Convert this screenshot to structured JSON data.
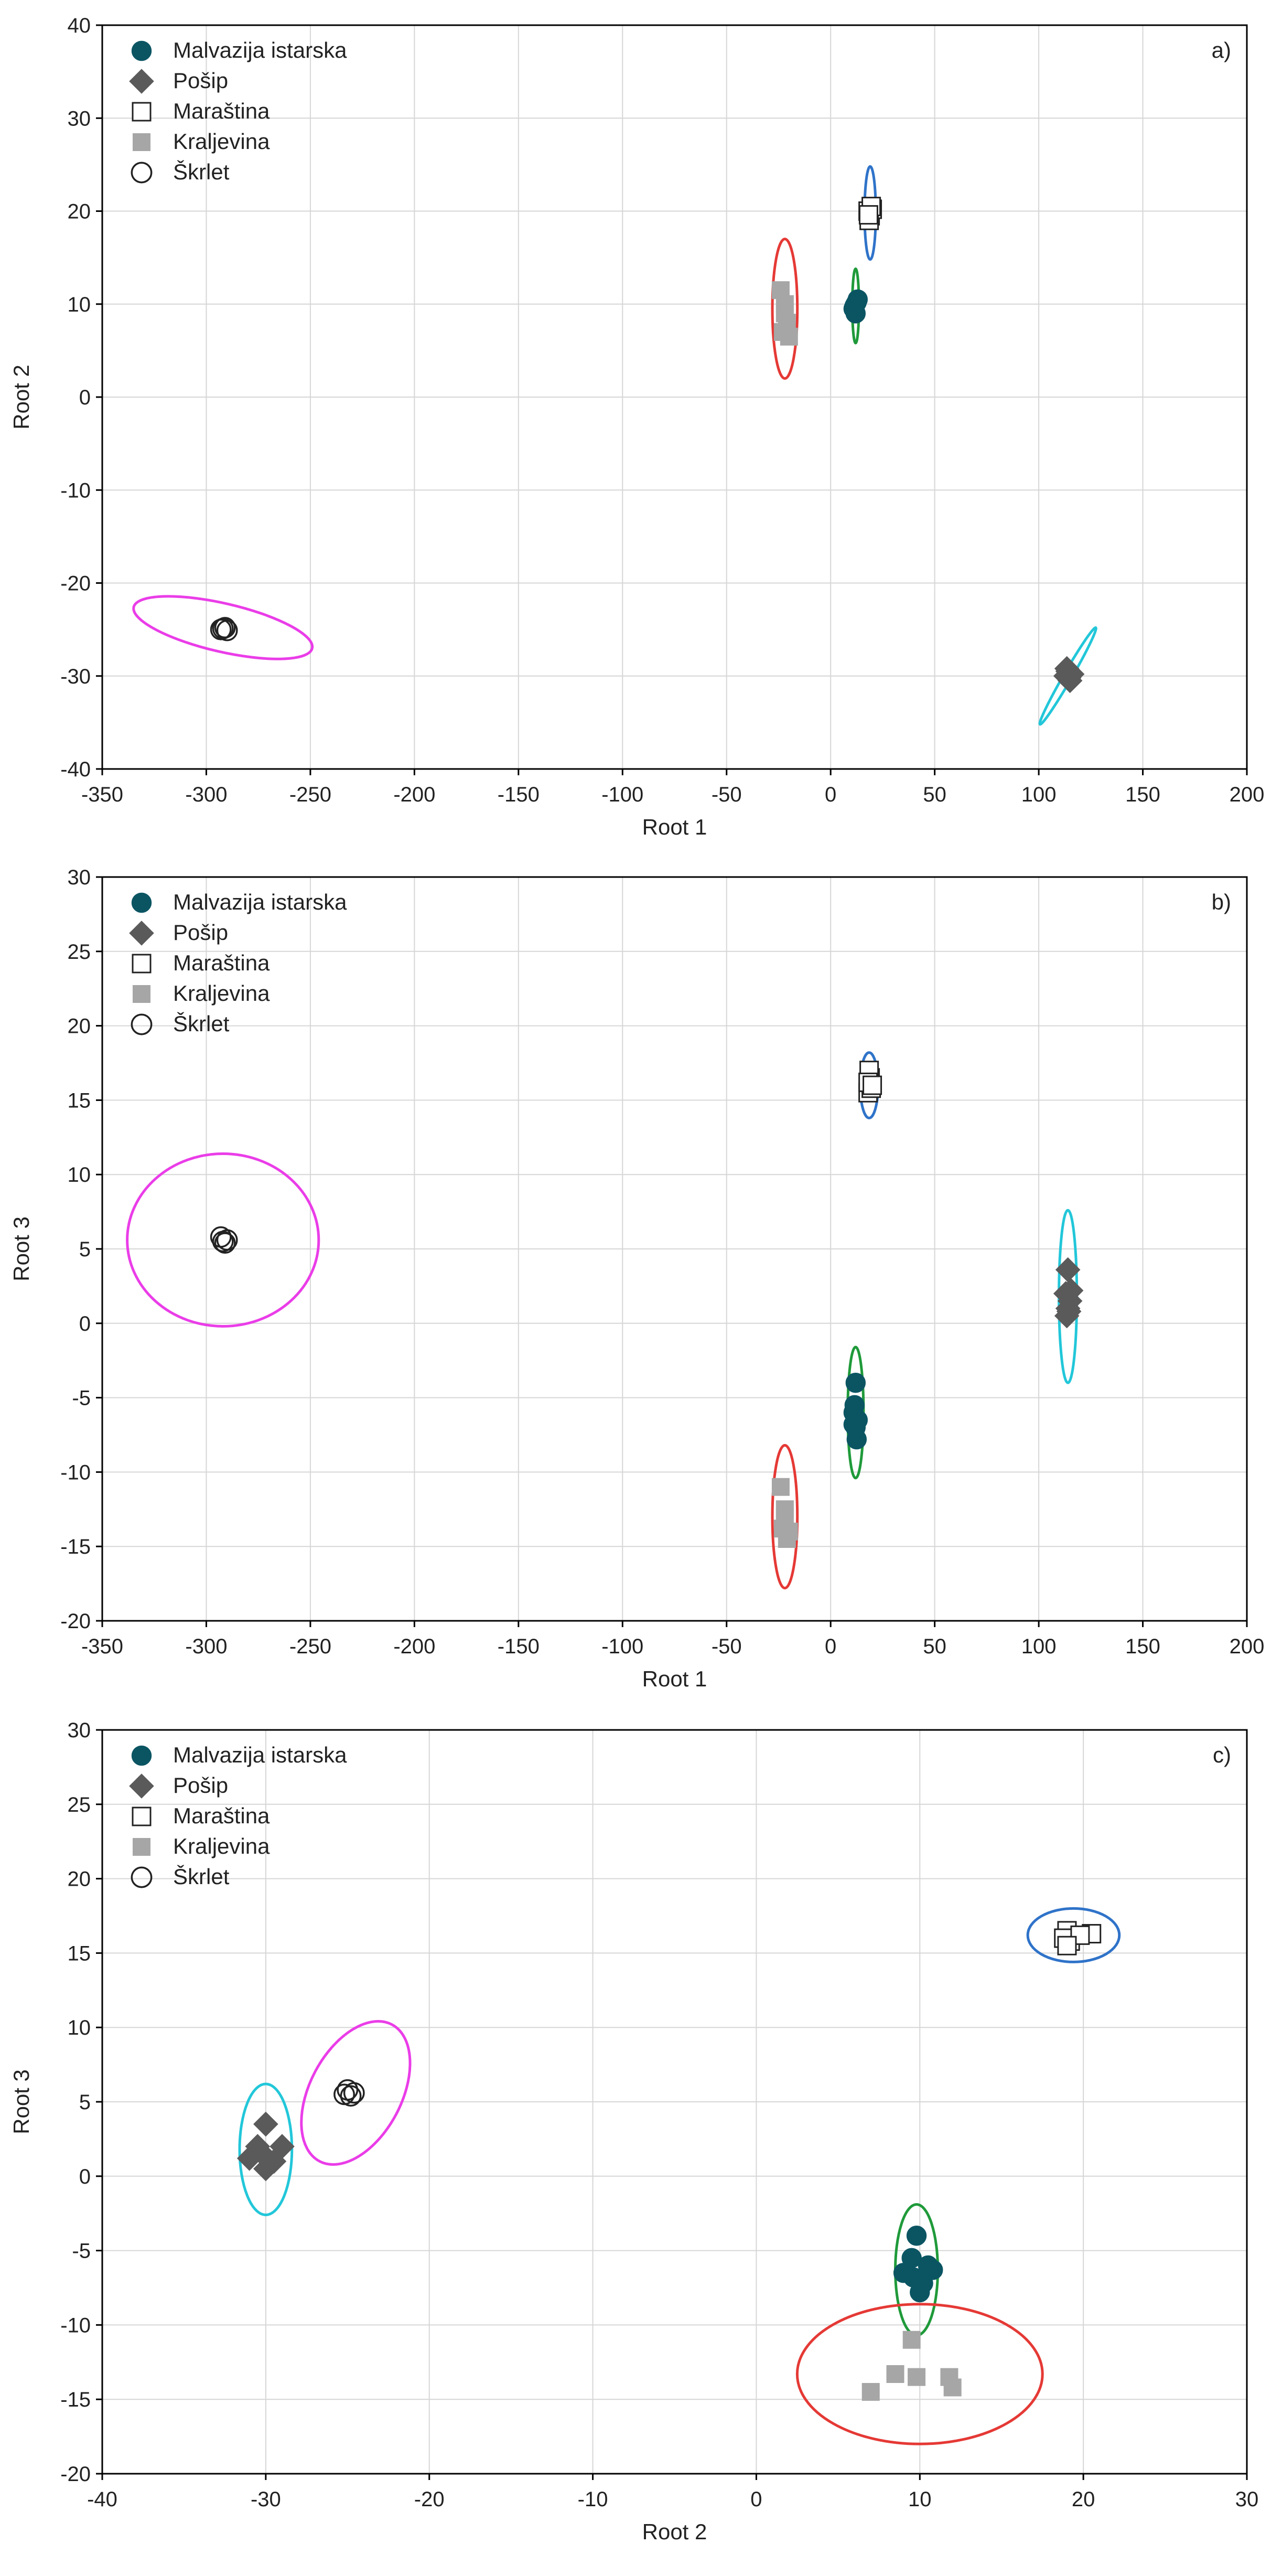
{
  "colors": {
    "malvazija": "#0b5563",
    "posip": "#5a5a5a",
    "marastina": "#222222",
    "kraljevina": "#a6a6a6",
    "skrlet": "#222222",
    "ellipse_malvazija": "#1f9a3a",
    "ellipse_posip": "#22c7d9",
    "ellipse_marastina": "#2f73c9",
    "ellipse_kraljevina": "#e53935",
    "ellipse_skrlet": "#ea3de8",
    "grid": "#d6d6d6"
  },
  "chart_data": [
    {
      "type": "scatter",
      "panel_label": "a)",
      "xlabel": "Root 1",
      "ylabel": "Root 2",
      "xlim": [
        -350,
        200
      ],
      "ylim": [
        -40,
        40
      ],
      "xticks": [
        -350,
        -300,
        -250,
        -200,
        -150,
        -100,
        -50,
        0,
        50,
        100,
        150,
        200
      ],
      "yticks": [
        -40,
        -30,
        -20,
        -10,
        0,
        10,
        20,
        30,
        40
      ],
      "grid": true,
      "legend_position": "top-left",
      "series": [
        {
          "name": "Malvazija istarska",
          "marker": "circle-filled",
          "color_key": "malvazija",
          "points": [
            [
              11,
              9.5
            ],
            [
              12,
              10
            ],
            [
              13,
              10.5
            ],
            [
              12,
              9
            ],
            [
              11.5,
              9.8
            ],
            [
              12.5,
              10.2
            ]
          ],
          "ellipse": {
            "cx": 12,
            "cy": 9.8,
            "rx": 4,
            "ry": 1.6,
            "rot": 90,
            "color_key": "ellipse_malvazija"
          }
        },
        {
          "name": "Pošip",
          "marker": "diamond",
          "color_key": "posip",
          "points": [
            [
              113,
              -30
            ],
            [
              114,
              -29.5
            ],
            [
              115,
              -30.5
            ],
            [
              116,
              -29.8
            ],
            [
              114.5,
              -30.2
            ],
            [
              113.5,
              -29.2
            ]
          ],
          "ellipse": {
            "cx": 114,
            "cy": -30,
            "rx": 6,
            "ry": 2,
            "rot": 60,
            "color_key": "ellipse_posip"
          }
        },
        {
          "name": "Maraština",
          "marker": "square-open",
          "color_key": "marastina",
          "points": [
            [
              18,
              20
            ],
            [
              19,
              19.5
            ],
            [
              20,
              20.2
            ],
            [
              18.5,
              19
            ],
            [
              19.5,
              20.5
            ],
            [
              18.2,
              19.6
            ]
          ],
          "ellipse": {
            "cx": 19,
            "cy": 19.8,
            "rx": 5,
            "ry": 2.7,
            "rot": 90,
            "color_key": "ellipse_marastina"
          }
        },
        {
          "name": "Kraljevina",
          "marker": "square-filled",
          "color_key": "kraljevina",
          "points": [
            [
              -24,
              11.5
            ],
            [
              -22,
              10
            ],
            [
              -21,
              8
            ],
            [
              -23,
              7
            ],
            [
              -22,
              9
            ],
            [
              -20,
              6.5
            ]
          ],
          "ellipse": {
            "cx": -22,
            "cy": 9.5,
            "rx": 7.5,
            "ry": 6,
            "rot": 90,
            "color_key": "ellipse_kraljevina"
          }
        },
        {
          "name": "Škrlet",
          "marker": "circle-open",
          "color_key": "skrlet",
          "points": [
            [
              -293,
              -25
            ],
            [
              -291,
              -24.8
            ],
            [
              -290,
              -25.1
            ],
            [
              -292,
              -24.9
            ]
          ],
          "ellipse": {
            "cx": -292,
            "cy": -24.8,
            "rx": 44,
            "ry": 2.6,
            "rot": -13,
            "color_key": "ellipse_skrlet"
          }
        }
      ]
    },
    {
      "type": "scatter",
      "panel_label": "b)",
      "xlabel": "Root 1",
      "ylabel": "Root 3",
      "xlim": [
        -350,
        200
      ],
      "ylim": [
        -20,
        30
      ],
      "xticks": [
        -350,
        -300,
        -250,
        -200,
        -150,
        -100,
        -50,
        0,
        50,
        100,
        150,
        200
      ],
      "yticks": [
        -20,
        -15,
        -10,
        -5,
        0,
        5,
        10,
        15,
        20,
        25,
        30
      ],
      "grid": true,
      "legend_position": "top-left",
      "series": [
        {
          "name": "Malvazija istarska",
          "marker": "circle-filled",
          "color_key": "malvazija",
          "points": [
            [
              12,
              -4
            ],
            [
              11,
              -6
            ],
            [
              12,
              -7
            ],
            [
              13,
              -6.5
            ],
            [
              11.5,
              -5.5
            ],
            [
              12.5,
              -7.8
            ],
            [
              11,
              -6.8
            ]
          ],
          "ellipse": {
            "cx": 12,
            "cy": -6,
            "rx": 4.4,
            "ry": 3.8,
            "rot": 90,
            "color_key": "ellipse_malvazija"
          }
        },
        {
          "name": "Pošip",
          "marker": "diamond",
          "color_key": "posip",
          "points": [
            [
              114,
              3.6
            ],
            [
              113,
              2
            ],
            [
              115,
              1.5
            ],
            [
              114,
              1
            ],
            [
              113.5,
              0.5
            ],
            [
              115.5,
              2.2
            ],
            [
              114.5,
              0.8
            ]
          ],
          "ellipse": {
            "cx": 114,
            "cy": 1.8,
            "rx": 4.3,
            "ry": 5.8,
            "rot": 0,
            "color_key": "ellipse_posip"
          }
        },
        {
          "name": "Maraština",
          "marker": "square-open",
          "color_key": "marastina",
          "points": [
            [
              18,
              15.5
            ],
            [
              19,
              16.5
            ],
            [
              18.5,
              17
            ],
            [
              19.5,
              15.8
            ],
            [
              18,
              16.2
            ],
            [
              20,
              16
            ]
          ],
          "ellipse": {
            "cx": 18.5,
            "cy": 16,
            "rx": 4.3,
            "ry": 2.2,
            "rot": 0,
            "color_key": "ellipse_marastina"
          }
        },
        {
          "name": "Kraljevina",
          "marker": "square-filled",
          "color_key": "kraljevina",
          "points": [
            [
              -24,
              -11
            ],
            [
              -22,
              -13
            ],
            [
              -21,
              -14.5
            ],
            [
              -23,
              -13.8
            ],
            [
              -22,
              -12.5
            ],
            [
              -20,
              -14
            ]
          ],
          "ellipse": {
            "cx": -22,
            "cy": -13,
            "rx": 6,
            "ry": 4.8,
            "rot": 0,
            "color_key": "ellipse_kraljevina"
          }
        },
        {
          "name": "Škrlet",
          "marker": "circle-open",
          "color_key": "skrlet",
          "points": [
            [
              -293,
              5.8
            ],
            [
              -291,
              5.4
            ],
            [
              -290,
              5.6
            ],
            [
              -292,
              5.5
            ]
          ],
          "ellipse": {
            "cx": -292,
            "cy": 5.6,
            "rx": 46,
            "ry": 5.8,
            "rot": 0,
            "color_key": "ellipse_skrlet"
          }
        }
      ]
    },
    {
      "type": "scatter",
      "panel_label": "c)",
      "xlabel": "Root 2",
      "ylabel": "Root 3",
      "xlim": [
        -40,
        30
      ],
      "ylim": [
        -20,
        30
      ],
      "xticks": [
        -40,
        -30,
        -20,
        -10,
        0,
        10,
        20,
        30
      ],
      "yticks": [
        -20,
        -15,
        -10,
        -5,
        0,
        5,
        10,
        15,
        20,
        25,
        30
      ],
      "grid": true,
      "legend_position": "top-left",
      "series": [
        {
          "name": "Malvazija istarska",
          "marker": "circle-filled",
          "color_key": "malvazija",
          "points": [
            [
              9.8,
              -4
            ],
            [
              9.5,
              -5.5
            ],
            [
              10.5,
              -6
            ],
            [
              9.6,
              -6.8
            ],
            [
              10.2,
              -7.2
            ],
            [
              9,
              -6.5
            ],
            [
              10,
              -7.8
            ],
            [
              10.8,
              -6.3
            ]
          ],
          "ellipse": {
            "cx": 9.8,
            "cy": -6.3,
            "rx": 1.3,
            "ry": 4.4,
            "rot": 0,
            "color_key": "ellipse_malvazija"
          }
        },
        {
          "name": "Pošip",
          "marker": "diamond",
          "color_key": "posip",
          "points": [
            [
              -30,
              3.5
            ],
            [
              -30.5,
              2
            ],
            [
              -29.5,
              1
            ],
            [
              -31,
              1.2
            ],
            [
              -30,
              0.5
            ],
            [
              -29,
              2
            ],
            [
              -30.2,
              1.5
            ]
          ],
          "ellipse": {
            "cx": -30,
            "cy": 1.8,
            "rx": 1.6,
            "ry": 4.4,
            "rot": 0,
            "color_key": "ellipse_posip"
          }
        },
        {
          "name": "Maraština",
          "marker": "square-open",
          "color_key": "marastina",
          "points": [
            [
              19,
              16.5
            ],
            [
              19.2,
              15.8
            ],
            [
              20.5,
              16.3
            ],
            [
              18.8,
              16
            ],
            [
              19.8,
              16.2
            ],
            [
              19,
              15.5
            ]
          ],
          "ellipse": {
            "cx": 19.4,
            "cy": 16.2,
            "rx": 2.8,
            "ry": 1.8,
            "rot": 0,
            "color_key": "ellipse_marastina"
          }
        },
        {
          "name": "Kraljevina",
          "marker": "square-filled",
          "color_key": "kraljevina",
          "points": [
            [
              9.5,
              -11
            ],
            [
              8.5,
              -13.3
            ],
            [
              7,
              -14.5
            ],
            [
              9.8,
              -13.5
            ],
            [
              11.8,
              -13.5
            ],
            [
              12,
              -14.2
            ]
          ],
          "ellipse": {
            "cx": 10,
            "cy": -13.3,
            "rx": 7.5,
            "ry": 4.7,
            "rot": 0,
            "color_key": "ellipse_kraljevina"
          }
        },
        {
          "name": "Škrlet",
          "marker": "circle-open",
          "color_key": "skrlet",
          "points": [
            [
              -25,
              5.8
            ],
            [
              -24.8,
              5.4
            ],
            [
              -24.6,
              5.6
            ],
            [
              -25.2,
              5.5
            ]
          ],
          "ellipse": {
            "cx": -24.5,
            "cy": 5.6,
            "rx": 5.2,
            "ry": 2.8,
            "rot": 62,
            "color_key": "ellipse_skrlet"
          }
        }
      ]
    }
  ]
}
